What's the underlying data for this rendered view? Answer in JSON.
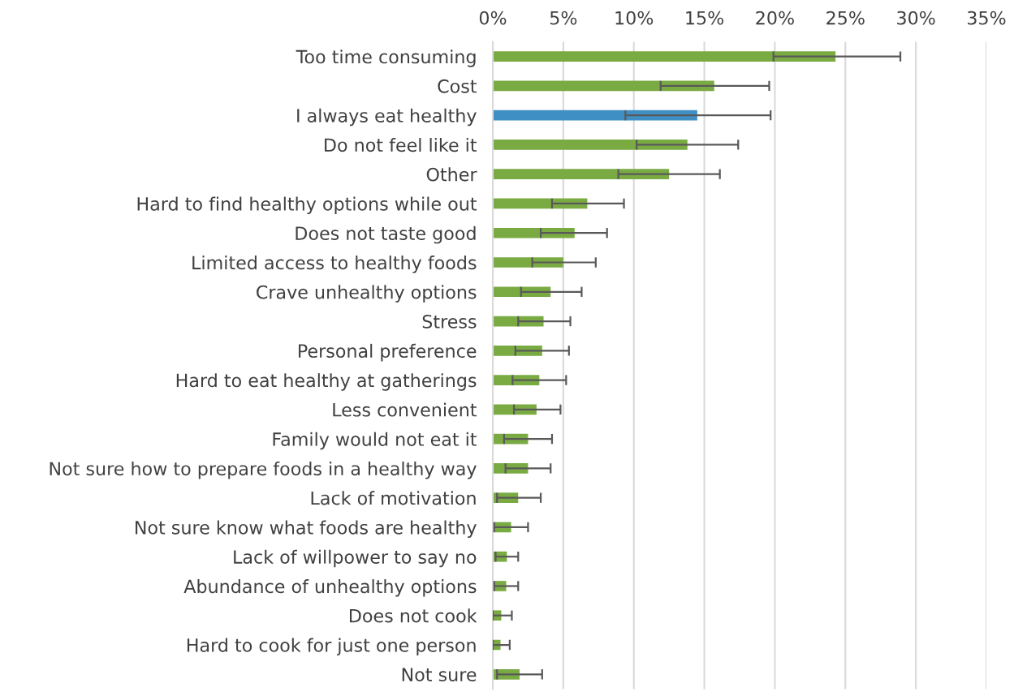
{
  "chart_data": {
    "type": "bar",
    "orientation": "horizontal",
    "categories": [
      "Too time consuming",
      "Cost",
      "I always eat healthy",
      "Do not feel like it",
      "Other",
      "Hard to find healthy options while out",
      "Does not taste good",
      "Limited access to healthy foods",
      "Crave unhealthy options",
      "Stress",
      "Personal preference",
      "Hard to eat healthy at gatherings",
      "Less convenient",
      "Family would not eat it",
      "Not sure how to prepare foods in a healthy way",
      "Lack of motivation",
      "Not sure know what foods are healthy",
      "Lack of willpower to say no",
      "Abundance of unhealthy options",
      "Does not cook",
      "Hard to cook for just one person",
      "Not sure"
    ],
    "values": [
      24.3,
      15.7,
      14.5,
      13.8,
      12.5,
      6.7,
      5.8,
      5.0,
      4.1,
      3.6,
      3.5,
      3.3,
      3.1,
      2.5,
      2.5,
      1.8,
      1.3,
      1.0,
      0.95,
      0.6,
      0.55,
      1.9
    ],
    "errors": [
      [
        19.9,
        28.9
      ],
      [
        11.9,
        19.6
      ],
      [
        9.4,
        19.7
      ],
      [
        10.2,
        17.4
      ],
      [
        8.9,
        16.1
      ],
      [
        4.2,
        9.3
      ],
      [
        3.4,
        8.1
      ],
      [
        2.8,
        7.3
      ],
      [
        2.0,
        6.3
      ],
      [
        1.8,
        5.5
      ],
      [
        1.6,
        5.4
      ],
      [
        1.4,
        5.2
      ],
      [
        1.5,
        4.8
      ],
      [
        0.8,
        4.2
      ],
      [
        0.9,
        4.1
      ],
      [
        0.3,
        3.4
      ],
      [
        0.1,
        2.5
      ],
      [
        0.2,
        1.8
      ],
      [
        0.1,
        1.8
      ],
      [
        0.0,
        1.35
      ],
      [
        0.0,
        1.2
      ],
      [
        0.3,
        3.5
      ]
    ],
    "colors": [
      "#7aab43",
      "#7aab43",
      "#3f8fc5",
      "#7aab43",
      "#7aab43",
      "#7aab43",
      "#7aab43",
      "#7aab43",
      "#7aab43",
      "#7aab43",
      "#7aab43",
      "#7aab43",
      "#7aab43",
      "#7aab43",
      "#7aab43",
      "#7aab43",
      "#7aab43",
      "#7aab43",
      "#7aab43",
      "#7aab43",
      "#7aab43",
      "#7aab43"
    ],
    "xlim": [
      0,
      35
    ],
    "xticks": [
      {
        "value": 0,
        "label": "0%"
      },
      {
        "value": 5,
        "label": "5%"
      },
      {
        "value": 10,
        "label": "10%"
      },
      {
        "value": 15,
        "label": "15%"
      },
      {
        "value": 20,
        "label": "20%"
      },
      {
        "value": 25,
        "label": "25%"
      },
      {
        "value": 30,
        "label": "30%"
      },
      {
        "value": 35,
        "label": "35%"
      }
    ],
    "grid": "x"
  }
}
